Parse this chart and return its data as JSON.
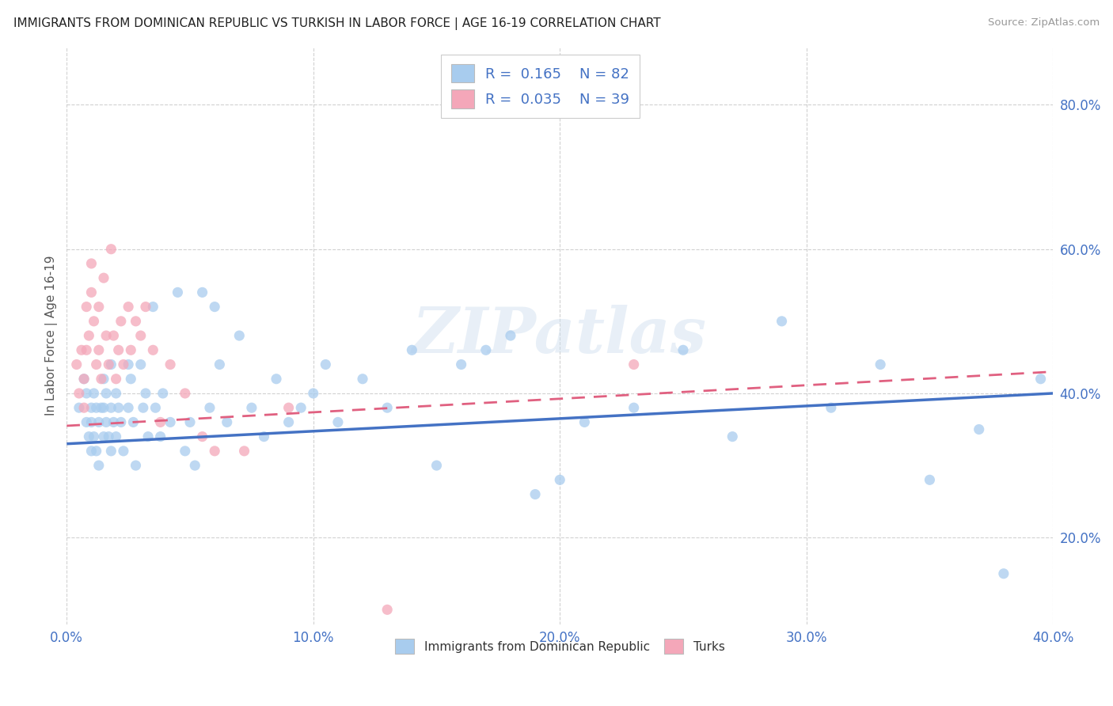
{
  "title": "IMMIGRANTS FROM DOMINICAN REPUBLIC VS TURKISH IN LABOR FORCE | AGE 16-19 CORRELATION CHART",
  "source": "Source: ZipAtlas.com",
  "ylabel": "In Labor Force | Age 16-19",
  "xlim": [
    0.0,
    0.4
  ],
  "ylim": [
    0.08,
    0.88
  ],
  "xtick_labels": [
    "0.0%",
    "10.0%",
    "20.0%",
    "30.0%",
    "40.0%"
  ],
  "ytick_labels": [
    "20.0%",
    "40.0%",
    "60.0%",
    "80.0%"
  ],
  "ytick_positions": [
    0.2,
    0.4,
    0.6,
    0.8
  ],
  "xtick_positions": [
    0.0,
    0.1,
    0.2,
    0.3,
    0.4
  ],
  "color_blue": "#A8CCEE",
  "color_pink": "#F4A7B9",
  "line_blue": "#4472C4",
  "line_pink": "#E06080",
  "grid_color": "#CCCCCC",
  "R_blue": 0.165,
  "N_blue": 82,
  "R_pink": 0.035,
  "N_pink": 39,
  "scatter_blue_x": [
    0.005,
    0.007,
    0.008,
    0.008,
    0.009,
    0.01,
    0.01,
    0.01,
    0.011,
    0.011,
    0.012,
    0.012,
    0.013,
    0.013,
    0.014,
    0.015,
    0.015,
    0.015,
    0.016,
    0.016,
    0.017,
    0.018,
    0.018,
    0.018,
    0.019,
    0.02,
    0.02,
    0.021,
    0.022,
    0.023,
    0.025,
    0.025,
    0.026,
    0.027,
    0.028,
    0.03,
    0.031,
    0.032,
    0.033,
    0.035,
    0.036,
    0.038,
    0.039,
    0.042,
    0.045,
    0.048,
    0.05,
    0.052,
    0.055,
    0.058,
    0.06,
    0.062,
    0.065,
    0.07,
    0.075,
    0.08,
    0.085,
    0.09,
    0.095,
    0.1,
    0.105,
    0.11,
    0.12,
    0.13,
    0.14,
    0.15,
    0.16,
    0.17,
    0.18,
    0.19,
    0.2,
    0.21,
    0.23,
    0.25,
    0.27,
    0.29,
    0.31,
    0.33,
    0.35,
    0.37,
    0.38,
    0.395
  ],
  "scatter_blue_y": [
    0.38,
    0.42,
    0.36,
    0.4,
    0.34,
    0.38,
    0.36,
    0.32,
    0.4,
    0.34,
    0.38,
    0.32,
    0.36,
    0.3,
    0.38,
    0.42,
    0.38,
    0.34,
    0.4,
    0.36,
    0.34,
    0.44,
    0.38,
    0.32,
    0.36,
    0.4,
    0.34,
    0.38,
    0.36,
    0.32,
    0.44,
    0.38,
    0.42,
    0.36,
    0.3,
    0.44,
    0.38,
    0.4,
    0.34,
    0.52,
    0.38,
    0.34,
    0.4,
    0.36,
    0.54,
    0.32,
    0.36,
    0.3,
    0.54,
    0.38,
    0.52,
    0.44,
    0.36,
    0.48,
    0.38,
    0.34,
    0.42,
    0.36,
    0.38,
    0.4,
    0.44,
    0.36,
    0.42,
    0.38,
    0.46,
    0.3,
    0.44,
    0.46,
    0.48,
    0.26,
    0.28,
    0.36,
    0.38,
    0.46,
    0.34,
    0.5,
    0.38,
    0.44,
    0.28,
    0.35,
    0.15,
    0.42
  ],
  "scatter_pink_x": [
    0.004,
    0.005,
    0.006,
    0.007,
    0.007,
    0.008,
    0.008,
    0.009,
    0.01,
    0.01,
    0.011,
    0.012,
    0.013,
    0.013,
    0.014,
    0.015,
    0.016,
    0.017,
    0.018,
    0.019,
    0.02,
    0.021,
    0.022,
    0.023,
    0.025,
    0.026,
    0.028,
    0.03,
    0.032,
    0.035,
    0.038,
    0.042,
    0.048,
    0.055,
    0.06,
    0.072,
    0.09,
    0.13,
    0.23
  ],
  "scatter_pink_y": [
    0.44,
    0.4,
    0.46,
    0.42,
    0.38,
    0.52,
    0.46,
    0.48,
    0.54,
    0.58,
    0.5,
    0.44,
    0.52,
    0.46,
    0.42,
    0.56,
    0.48,
    0.44,
    0.6,
    0.48,
    0.42,
    0.46,
    0.5,
    0.44,
    0.52,
    0.46,
    0.5,
    0.48,
    0.52,
    0.46,
    0.36,
    0.44,
    0.4,
    0.34,
    0.32,
    0.32,
    0.38,
    0.1,
    0.44
  ],
  "watermark": "ZIPatlas",
  "legend_label_blue": "Immigrants from Dominican Republic",
  "legend_label_pink": "Turks",
  "blue_line_y0": 0.33,
  "blue_line_y1": 0.4,
  "pink_line_y0": 0.355,
  "pink_line_y1": 0.43
}
